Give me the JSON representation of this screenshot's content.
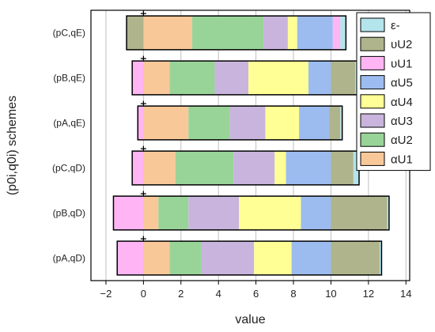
{
  "chart_data": {
    "type": "bar",
    "orientation": "horizontal",
    "stacked": true,
    "xlabel": "value",
    "ylabel": "(p0i,q0i) schemes",
    "xlim": [
      -2.8,
      14.2
    ],
    "xticks": [
      -2,
      0,
      2,
      4,
      6,
      8,
      10,
      12,
      14
    ],
    "grid": "vertical",
    "legend_position": "top-right",
    "categories": [
      "(pA,qD)",
      "(pB,qD)",
      "(pC,qD)",
      "(pA,qE)",
      "(pB,qE)",
      "(pC,qE)"
    ],
    "series": [
      {
        "name": "αU1",
        "color": "#f8c898",
        "values": [
          1.4,
          0.8,
          1.7,
          2.4,
          1.4,
          2.6
        ]
      },
      {
        "name": "αU2",
        "color": "#98d498",
        "values": [
          1.7,
          1.6,
          3.1,
          2.2,
          2.4,
          3.8
        ]
      },
      {
        "name": "αU3",
        "color": "#c8b4dc",
        "values": [
          2.8,
          2.7,
          2.2,
          1.9,
          1.8,
          1.3
        ]
      },
      {
        "name": "αU4",
        "color": "#ffff96",
        "values": [
          2.0,
          3.3,
          0.6,
          1.8,
          3.2,
          0.5
        ]
      },
      {
        "name": "αU5",
        "color": "#9cbcf0",
        "values": [
          2.1,
          1.6,
          2.4,
          1.6,
          1.2,
          1.9
        ]
      },
      {
        "name": "υU1",
        "color": "#ffb4f4",
        "values": [
          -1.4,
          -1.6,
          -0.6,
          -0.3,
          -0.6,
          0.4
        ]
      },
      {
        "name": "υU2",
        "color": "#b0b48c",
        "values": [
          2.6,
          3.0,
          1.2,
          0.6,
          1.3,
          -0.9
        ]
      },
      {
        "name": "ε-",
        "color": "#b4e4ec",
        "values": [
          0.1,
          0.1,
          0.3,
          0.1,
          0.1,
          0.3
        ]
      }
    ]
  }
}
